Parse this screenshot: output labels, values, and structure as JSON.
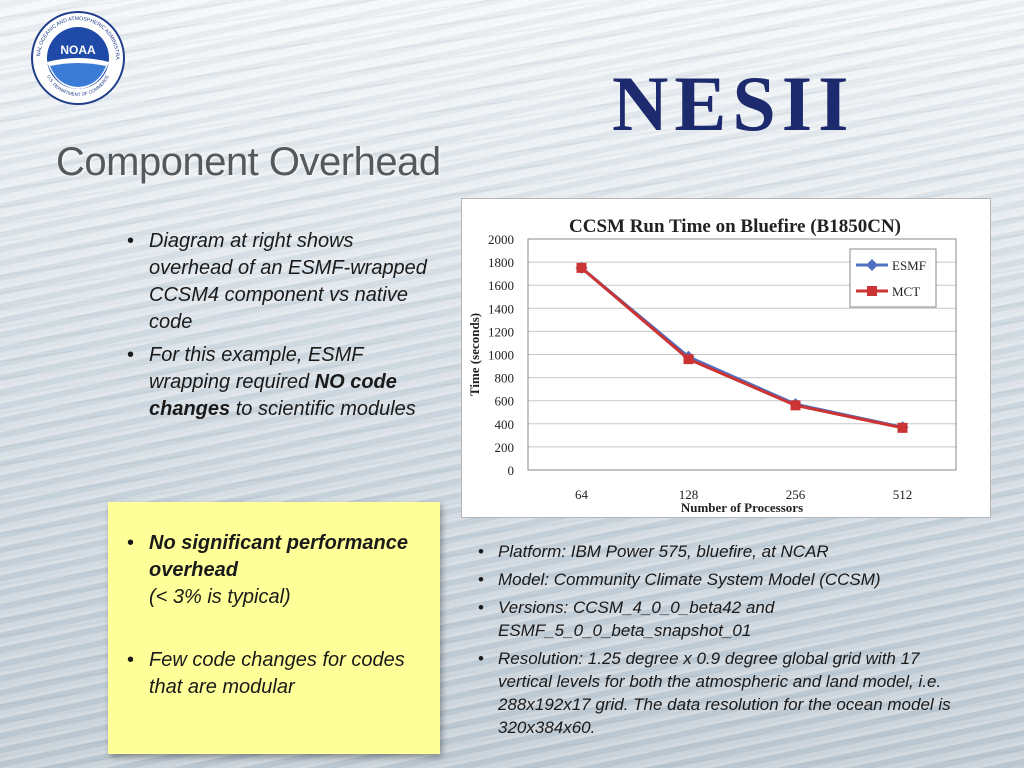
{
  "logo": {
    "noaa_text": "NOAA",
    "noaa_ring_text": "NATIONAL OCEANIC AND ATMOSPHERIC ADMINISTRATION",
    "noaa_bottom_text": "U.S. DEPARTMENT OF COMMERCE",
    "wordmark": "NESII"
  },
  "slide": {
    "title": "Component Overhead"
  },
  "left_bullets": [
    {
      "text": "Diagram at right shows overhead of an ESMF-wrapped CCSM4 component vs native code"
    },
    {
      "pre": "For this example, ESMF wrapping required ",
      "bold": "NO code changes",
      "post": " to scientific modules"
    }
  ],
  "yellow_box": {
    "bullets": [
      {
        "bold": "No significant performance overhead",
        "text": "(< 3% is typical)"
      },
      {
        "text": "Few code changes for codes that are modular"
      }
    ]
  },
  "right_bullets": [
    "Platform: IBM Power 575, bluefire, at NCAR",
    "Model: Community Climate System Model (CCSM)",
    "Versions: CCSM_4_0_0_beta42 and ESMF_5_0_0_beta_snapshot_01",
    "Resolution: 1.25 degree x 0.9 degree global grid with 17 vertical levels for both the atmospheric and land model, i.e. 288x192x17 grid.  The data resolution for the ocean model is 320x384x60."
  ],
  "chart_data": {
    "type": "line",
    "title": "CCSM Run Time on Bluefire (B1850CN)",
    "xlabel": "Number of Processors",
    "ylabel": "Time (seconds)",
    "categories": [
      "64",
      "128",
      "256",
      "512"
    ],
    "ylim": [
      0,
      2000
    ],
    "yticks": [
      "0",
      "200",
      "400",
      "600",
      "800",
      "1000",
      "1200",
      "1400",
      "1600",
      "1800",
      "2000"
    ],
    "grid": true,
    "legend": "top-right",
    "series": [
      {
        "name": "ESMF",
        "values": [
          1750,
          980,
          570,
          370
        ],
        "color": "#4f6fbf",
        "marker": "diamond"
      },
      {
        "name": "MCT",
        "values": [
          1750,
          960,
          560,
          365
        ],
        "color": "#cc3333",
        "marker": "square"
      }
    ]
  }
}
